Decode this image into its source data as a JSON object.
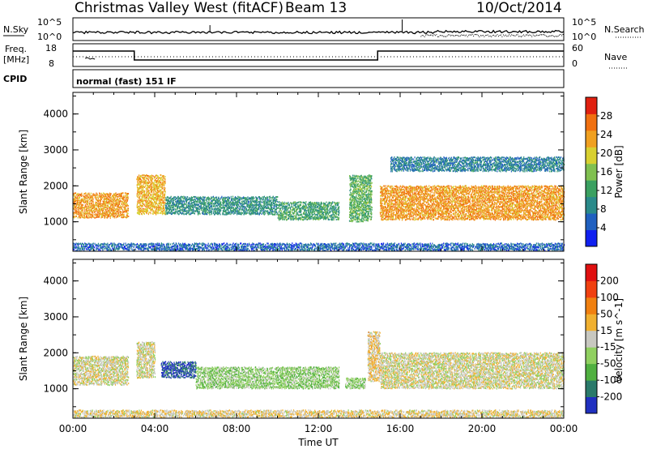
{
  "header": {
    "title": "Christmas Valley West (fitACF)",
    "beam": "Beam 13",
    "date": "10/Oct/2014"
  },
  "strip": {
    "nsky_label": "N.Sky",
    "nsearch_label": "N.Search",
    "freq_label": "Freq.",
    "freq_unit": "[MHz]",
    "nave_label": "Nave",
    "cpid_label": "CPID",
    "cpid_text": "normal (fast) 151 IF",
    "noise_ticks": [
      "10^5",
      "10^0"
    ],
    "freq_ticks": [
      "18",
      "8"
    ],
    "nave_ticks": [
      "60",
      "0"
    ]
  },
  "chart_data": [
    {
      "type": "heatmap",
      "name": "power",
      "xlabel": "Time UT",
      "ylabel": "Slant Range [km]",
      "x_ticks": [
        "00:00",
        "04:00",
        "08:00",
        "12:00",
        "16:00",
        "20:00",
        "00:00"
      ],
      "y_ticks": [
        "1000",
        "2000",
        "3000",
        "4000"
      ],
      "ylim": [
        180,
        4600
      ],
      "colorbar": {
        "label": "Power [dB]",
        "ticks": [
          "4",
          "8",
          "12",
          "16",
          "20",
          "24",
          "28"
        ],
        "range": [
          0,
          32
        ],
        "colors": [
          "#1020f0",
          "#2060c0",
          "#2a8a8a",
          "#3aa060",
          "#80c050",
          "#d8d030",
          "#f0a020",
          "#f07010",
          "#e02010"
        ]
      },
      "features": [
        {
          "x": [
            0.0,
            2.7
          ],
          "y": [
            1100,
            1800
          ],
          "value": 24
        },
        {
          "x": [
            3.1,
            4.5
          ],
          "y": [
            1200,
            2300
          ],
          "value": 22
        },
        {
          "x": [
            4.5,
            10.0
          ],
          "y": [
            1200,
            1700
          ],
          "value": 10
        },
        {
          "x": [
            10.0,
            13.0
          ],
          "y": [
            1050,
            1550
          ],
          "value": 12
        },
        {
          "x": [
            13.5,
            14.6
          ],
          "y": [
            1000,
            2300
          ],
          "value": 14
        },
        {
          "x": [
            15.0,
            24.0
          ],
          "y": [
            1050,
            2000
          ],
          "value": 24
        },
        {
          "x": [
            15.5,
            24.0
          ],
          "y": [
            2400,
            2800
          ],
          "value": 8
        },
        {
          "x": [
            0.0,
            24.0
          ],
          "y": [
            200,
            400
          ],
          "value": 6
        }
      ]
    },
    {
      "type": "heatmap",
      "name": "velocity",
      "xlabel": "Time UT",
      "ylabel": "Slant Range [km]",
      "x_ticks": [
        "00:00",
        "04:00",
        "08:00",
        "12:00",
        "16:00",
        "20:00",
        "00:00"
      ],
      "y_ticks": [
        "1000",
        "2000",
        "3000",
        "4000"
      ],
      "ylim": [
        180,
        4600
      ],
      "colorbar": {
        "label": "Velocity [m s^-1]",
        "ticks": [
          "200",
          "100",
          "50",
          "15",
          "-15",
          "-50",
          "-100",
          "-200"
        ],
        "range": [
          -250,
          250
        ],
        "colors": [
          "#2030c0",
          "#2a7a6a",
          "#50b040",
          "#90d060",
          "#c8c8c0",
          "#f0b030",
          "#f08010",
          "#f04010",
          "#e01010"
        ]
      },
      "features": [
        {
          "x": [
            0.0,
            2.7
          ],
          "y": [
            1100,
            1900
          ],
          "value": 0
        },
        {
          "x": [
            3.1,
            4.0
          ],
          "y": [
            1300,
            2300
          ],
          "value": 0
        },
        {
          "x": [
            4.3,
            6.0
          ],
          "y": [
            1300,
            1750
          ],
          "value": -200
        },
        {
          "x": [
            6.0,
            13.0
          ],
          "y": [
            1000,
            1600
          ],
          "value": -60
        },
        {
          "x": [
            13.3,
            14.3
          ],
          "y": [
            1000,
            1300
          ],
          "value": -60
        },
        {
          "x": [
            14.4,
            15.0
          ],
          "y": [
            1200,
            2600
          ],
          "value": 30
        },
        {
          "x": [
            15.0,
            24.0
          ],
          "y": [
            1000,
            2000
          ],
          "value": 0
        },
        {
          "x": [
            0.0,
            24.0
          ],
          "y": [
            200,
            400
          ],
          "value": 20
        }
      ]
    }
  ]
}
